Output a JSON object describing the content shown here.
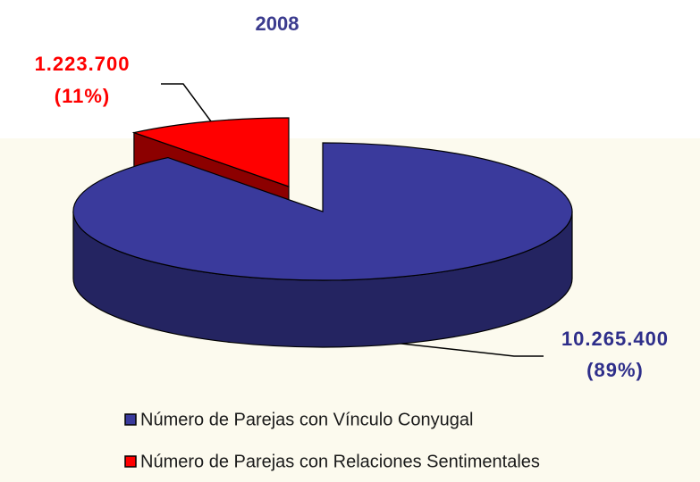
{
  "chart_data": {
    "type": "pie",
    "title": "2008",
    "categories": [
      "Número de Parejas con Vínculo Conyugal",
      "Número de Parejas con Relaciones Sentimentales"
    ],
    "values": [
      10265400,
      1223700
    ],
    "value_labels": [
      "10.265.400",
      "1.223.700"
    ],
    "percentages": [
      89,
      11
    ],
    "percentage_labels": [
      "(89%)",
      "(11%)"
    ],
    "colors": [
      "#3a3a9c",
      "#ff0000"
    ],
    "legend": "bottom"
  }
}
